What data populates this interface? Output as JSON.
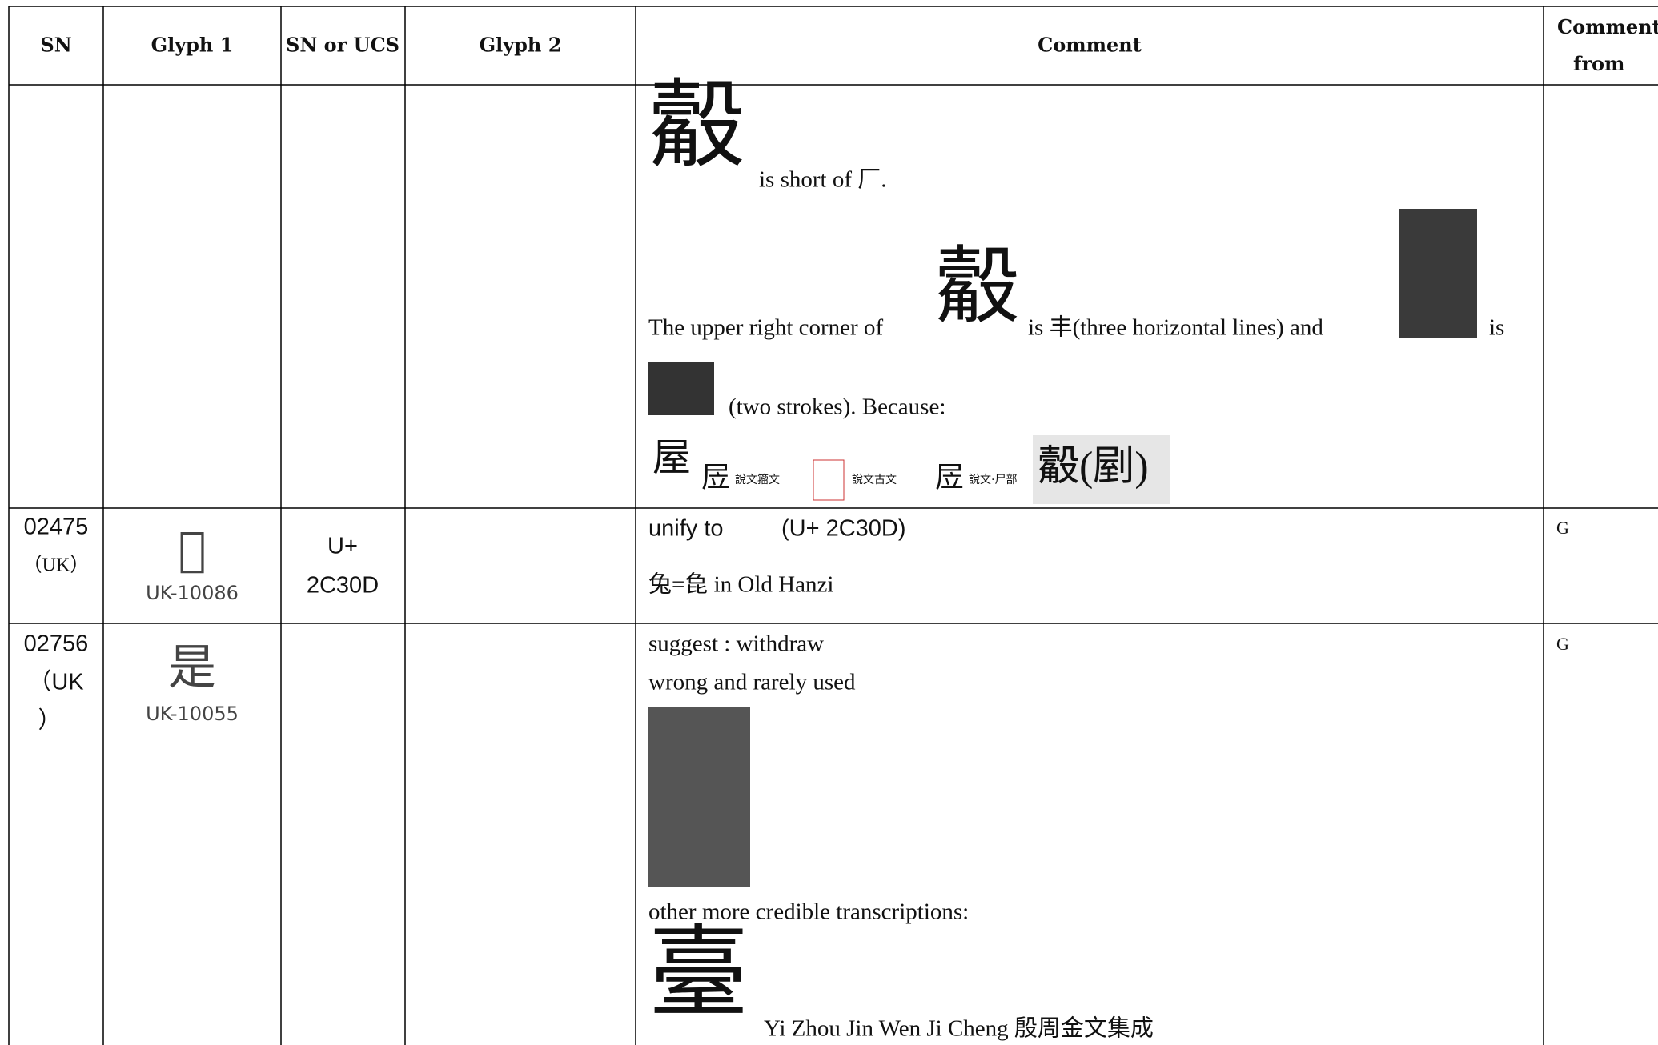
{
  "header": {
    "columns": [
      "SN",
      "Glyph 1",
      "SN or UCS",
      "Glyph 2",
      "Comment",
      "Comment from"
    ]
  },
  "rows": [
    {
      "comment": {
        "glyph_a": "觳",
        "line_1": "is short of 厂.",
        "glyph_b": "觳",
        "line_2a": "The upper right corner of",
        "line_2b": "is 丰(three horizontal lines) and",
        "line_2c": "is",
        "line_3": "(two strokes). Because:",
        "char_1": "屋",
        "src_1": "說文籀文",
        "src_2": "說文古文",
        "src_3": "說文·尸部",
        "glyph_c": "觳(剭)"
      }
    },
    {
      "sn": "02475",
      "sn_note": "（UK）",
      "glyph": "𬌍",
      "glyph_id": "UK-10086",
      "ucs_1": "U+",
      "ucs_2": "2C30D",
      "comment": {
        "line_1a": "unify to",
        "line_1b": "(U+ 2C30D)",
        "line_2": "兔=㲋  in Old Hanzi"
      },
      "from": "G"
    },
    {
      "sn": "02756",
      "sn_note_1": "（UK",
      "sn_note_2": "）",
      "glyph": "是",
      "glyph_id": "UK-10055",
      "comment": {
        "line_1": "suggest : withdraw",
        "line_2": "wrong and rarely used",
        "line_3": "other more credible transcriptions:",
        "glyph": "臺",
        "line_4": "Yi Zhou Jin Wen Ji Cheng  殷周金文集成"
      },
      "from": "G"
    }
  ]
}
